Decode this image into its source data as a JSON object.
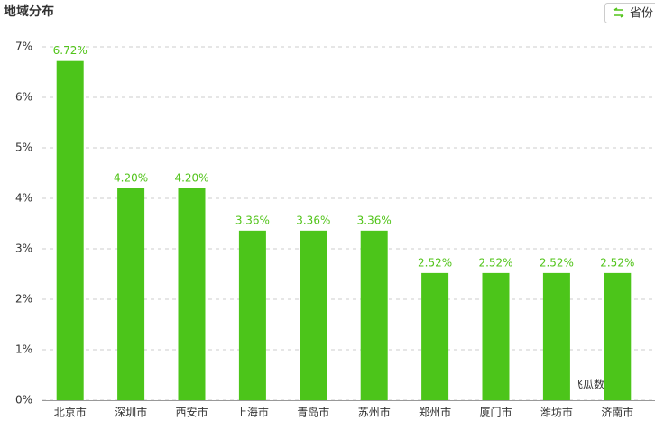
{
  "chart_data": {
    "type": "bar",
    "title": "地域分布",
    "button": "省份",
    "watermark": "飞瓜数据",
    "categories": [
      "北京市",
      "深圳市",
      "西安市",
      "上海市",
      "青岛市",
      "苏州市",
      "郑州市",
      "厦门市",
      "潍坊市",
      "济南市"
    ],
    "values": [
      6.72,
      4.2,
      4.2,
      3.36,
      3.36,
      3.36,
      2.52,
      2.52,
      2.52,
      2.52
    ],
    "value_labels": [
      "6.72%",
      "4.20%",
      "4.20%",
      "3.36%",
      "3.36%",
      "3.36%",
      "2.52%",
      "2.52%",
      "2.52%",
      "2.52%"
    ],
    "color": "#4cc51a",
    "label_color": "#52c41a",
    "ylim": [
      0,
      7
    ],
    "yticks": [
      {
        "value": 0,
        "label": "0%"
      },
      {
        "value": 1,
        "label": "1%"
      },
      {
        "value": 2,
        "label": "2%"
      },
      {
        "value": 3,
        "label": "3%"
      },
      {
        "value": 4,
        "label": "4%"
      },
      {
        "value": 5,
        "label": "5%"
      },
      {
        "value": 6,
        "label": "6%"
      },
      {
        "value": 7,
        "label": "7%"
      }
    ],
    "grid": true
  }
}
